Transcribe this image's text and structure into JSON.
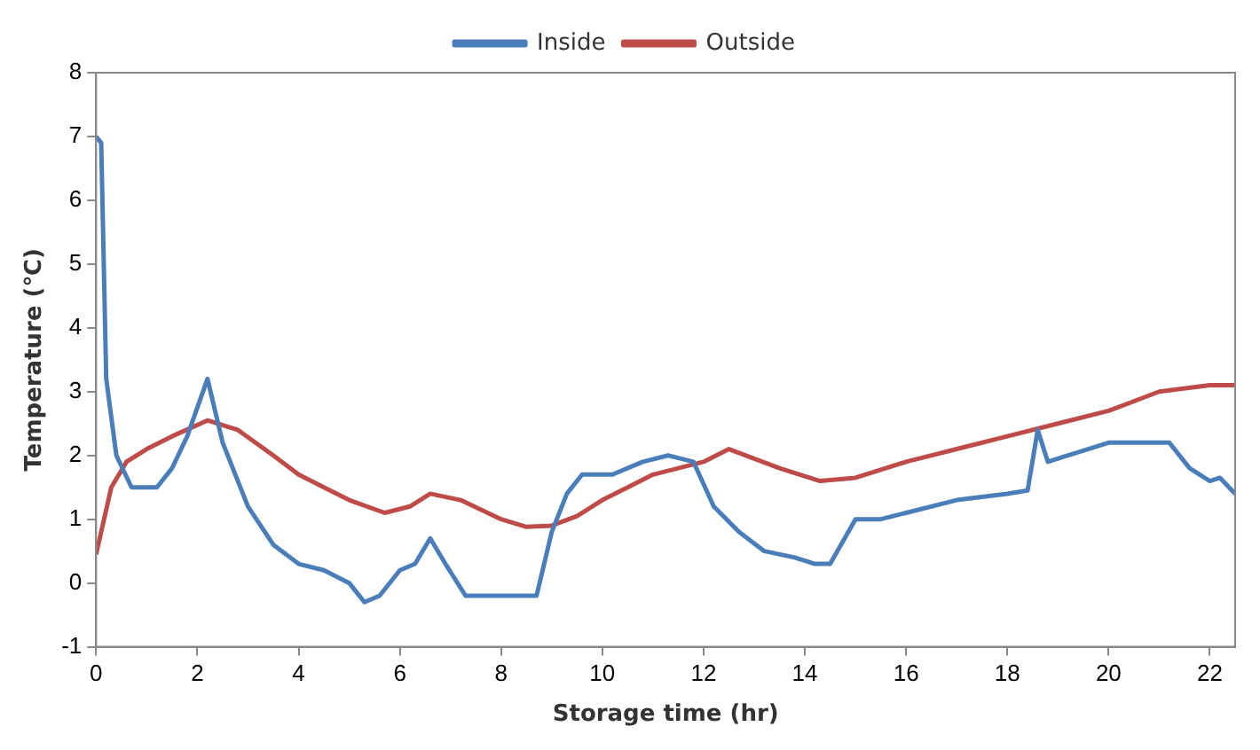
{
  "chart_data": {
    "type": "line",
    "xlabel": "Storage time (hr)",
    "ylabel": "Temperature (℃)",
    "xlim": [
      0,
      22.5
    ],
    "xticks": [
      0,
      2,
      4,
      6,
      8,
      10,
      12,
      14,
      16,
      18,
      20,
      22
    ],
    "ylim": [
      -1,
      8
    ],
    "yticks": [
      -1,
      0,
      1,
      2,
      3,
      4,
      5,
      6,
      7,
      8
    ],
    "grid": false,
    "legend": "top",
    "marker": "none",
    "line_style": "solid",
    "series": [
      {
        "name": "Inside",
        "color": "#4a7ebb",
        "x": [
          0,
          0.1,
          0.2,
          0.4,
          0.7,
          1.2,
          1.5,
          1.8,
          2.2,
          2.5,
          3,
          3.5,
          4,
          4.5,
          5,
          5.3,
          5.6,
          6,
          6.3,
          6.6,
          6.9,
          7.3,
          8,
          8.7,
          9,
          9.3,
          9.6,
          10.2,
          10.8,
          11.3,
          11.8,
          12.2,
          12.7,
          13.2,
          13.8,
          14.2,
          14.5,
          15,
          15.5,
          16,
          17,
          18,
          18.4,
          18.6,
          18.8,
          19.2,
          20,
          21.2,
          21.6,
          22,
          22.2,
          22.5
        ],
        "values": [
          7,
          6.9,
          3.2,
          2.0,
          1.5,
          1.5,
          1.8,
          2.3,
          3.2,
          2.2,
          1.2,
          0.6,
          0.3,
          0.2,
          0,
          -0.3,
          -0.2,
          0.2,
          0.3,
          0.7,
          0.3,
          -0.2,
          -0.2,
          -0.2,
          0.8,
          1.4,
          1.7,
          1.7,
          1.9,
          2.0,
          1.9,
          1.2,
          0.8,
          0.5,
          0.4,
          0.3,
          0.3,
          1.0,
          1.0,
          1.1,
          1.3,
          1.4,
          1.45,
          2.4,
          1.9,
          2.0,
          2.2,
          2.2,
          1.8,
          1.6,
          1.65,
          1.4
        ]
      },
      {
        "name": "Outside",
        "color": "#be4b48",
        "x": [
          0,
          0.3,
          0.6,
          1,
          1.5,
          2.2,
          2.8,
          3.5,
          4,
          4.5,
          5,
          5.7,
          6.2,
          6.6,
          7.2,
          8,
          8.5,
          9,
          9.5,
          10,
          10.5,
          11,
          12,
          12.5,
          13,
          13.5,
          14.3,
          15,
          16,
          17,
          18,
          19,
          20,
          21,
          22,
          22.5
        ],
        "values": [
          0.45,
          1.5,
          1.9,
          2.1,
          2.3,
          2.55,
          2.4,
          2.0,
          1.7,
          1.5,
          1.3,
          1.1,
          1.2,
          1.4,
          1.3,
          1.0,
          0.88,
          0.9,
          1.05,
          1.3,
          1.5,
          1.7,
          1.9,
          2.1,
          1.95,
          1.8,
          1.6,
          1.65,
          1.9,
          2.1,
          2.3,
          2.5,
          2.7,
          3.0,
          3.1,
          3.1
        ]
      }
    ]
  }
}
